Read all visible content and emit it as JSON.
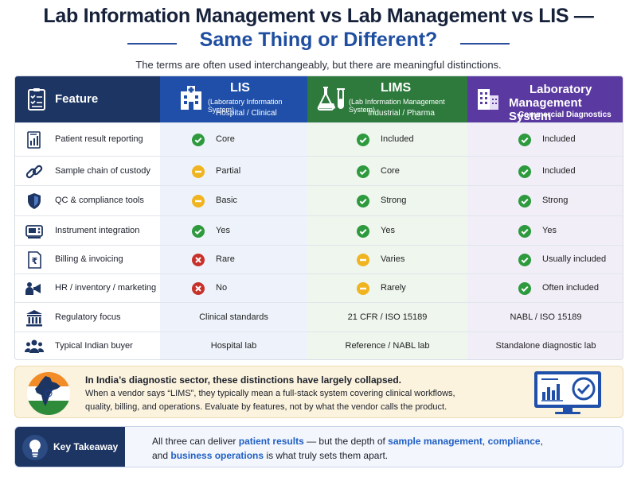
{
  "title": {
    "line1": "Lab Information Management vs Lab Management vs LIS —",
    "line2": "Same Thing or Different?"
  },
  "subtitle": "The terms are often used interchangeably, but there are meaningful distinctions.",
  "table": {
    "feature_header": "Feature",
    "columns": [
      {
        "title": "LIS",
        "subtitle": "(Laboratory Information System)",
        "segment": "Hospital / Clinical",
        "color": "#1f4fa8"
      },
      {
        "title": "LIMS",
        "subtitle": "(Lab Information Management System)",
        "segment": "Industrial / Pharma",
        "color": "#2e7a3d"
      },
      {
        "title": "Laboratory Management System",
        "title_line1": "Laboratory",
        "title_line2": "Management System",
        "segment": "Commercial Diagnostics",
        "color": "#5a3aa0"
      }
    ],
    "rows": [
      {
        "feature": "Patient result reporting",
        "icon": "report-chart-icon",
        "lis": {
          "status": "check",
          "text": "Core"
        },
        "lims": {
          "status": "check",
          "text": "Included"
        },
        "lms": {
          "status": "check",
          "text": "Included"
        }
      },
      {
        "feature": "Sample chain of custody",
        "icon": "chain-link-icon",
        "lis": {
          "status": "partial",
          "text": "Partial"
        },
        "lims": {
          "status": "check",
          "text": "Core"
        },
        "lms": {
          "status": "check",
          "text": "Included"
        }
      },
      {
        "feature": "QC & compliance tools",
        "icon": "shield-icon",
        "lis": {
          "status": "partial",
          "text": "Basic"
        },
        "lims": {
          "status": "check",
          "text": "Strong"
        },
        "lms": {
          "status": "check",
          "text": "Strong"
        }
      },
      {
        "feature": "Instrument integration",
        "icon": "instrument-icon",
        "lis": {
          "status": "check",
          "text": "Yes"
        },
        "lims": {
          "status": "check",
          "text": "Yes"
        },
        "lms": {
          "status": "check",
          "text": "Yes"
        }
      },
      {
        "feature": "Billing & invoicing",
        "icon": "invoice-rupee-icon",
        "lis": {
          "status": "cross",
          "text": "Rare"
        },
        "lims": {
          "status": "partial",
          "text": "Varies"
        },
        "lms": {
          "status": "check",
          "text": "Usually included"
        }
      },
      {
        "feature": "HR / inventory / marketing",
        "icon": "people-megaphone-icon",
        "lis": {
          "status": "cross",
          "text": "No"
        },
        "lims": {
          "status": "partial",
          "text": "Rarely"
        },
        "lms": {
          "status": "check",
          "text": "Often included"
        }
      },
      {
        "feature": "Regulatory focus",
        "icon": "institution-icon",
        "lis": {
          "text": "Clinical standards"
        },
        "lims": {
          "text": "21 CFR / ISO 15189"
        },
        "lms": {
          "text": "NABL / ISO 15189"
        }
      },
      {
        "feature": "Typical Indian buyer",
        "icon": "users-group-icon",
        "lis": {
          "text": "Hospital lab"
        },
        "lims": {
          "text": "Reference / NABL lab"
        },
        "lms": {
          "text": "Standalone diagnostic lab"
        }
      }
    ]
  },
  "info": {
    "line1": "In India’s diagnostic sector, these distinctions have largely collapsed.",
    "line2": "When a vendor says “LIMS”, they typically mean a full-stack system covering clinical workflows,",
    "line3": "quality, billing, and operations. Evaluate by features, not by what the vendor calls the product."
  },
  "takeaway": {
    "label": "Key Takeaway",
    "p1": "All three can deliver ",
    "h1": "patient results",
    "p2": " — but the depth of ",
    "h2": "sample management",
    "p3": ", ",
    "h3": "compliance",
    "p4": ",",
    "p5": "and ",
    "h4": "business operations",
    "p6": " is what truly sets them apart."
  },
  "colors": {
    "check": "#2e9a3e",
    "partial": "#f0b420",
    "cross": "#c8312a",
    "navy": "#1d3562"
  }
}
